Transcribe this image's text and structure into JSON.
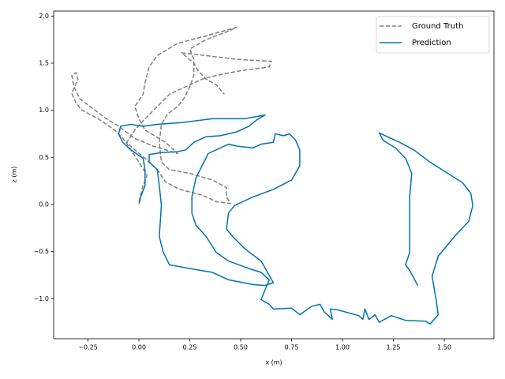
{
  "chart_data": {
    "type": "line",
    "xlabel": "x (m)",
    "ylabel": "z (m)",
    "xlim": [
      -0.419,
      1.744
    ],
    "ylim": [
      -1.425,
      2.053
    ],
    "xticks": [
      {
        "value": -0.25,
        "label": "−0.25"
      },
      {
        "value": 0,
        "label": "0.00"
      },
      {
        "value": 0.25,
        "label": "0.25"
      },
      {
        "value": 0.5,
        "label": "0.50"
      },
      {
        "value": 0.75,
        "label": "0.75"
      },
      {
        "value": 1,
        "label": "1.00"
      },
      {
        "value": 1.25,
        "label": "1.25"
      },
      {
        "value": 1.5,
        "label": "1.50"
      }
    ],
    "yticks": [
      {
        "value": -1,
        "label": "−1.0"
      },
      {
        "value": -0.5,
        "label": "−0.5"
      },
      {
        "value": 0,
        "label": "0.0"
      },
      {
        "value": 0.5,
        "label": "0.5"
      },
      {
        "value": 1,
        "label": "1.0"
      },
      {
        "value": 1.5,
        "label": "1.5"
      },
      {
        "value": 2,
        "label": "2.0"
      }
    ],
    "grid": false,
    "legend": "upper right",
    "series": [
      {
        "name": "Ground Truth",
        "color": "#808080",
        "linestyle": "dashed",
        "x": [
          0.0,
          0.02,
          0.04,
          0.0,
          -0.04,
          -0.07,
          -0.12,
          -0.2,
          -0.28,
          -0.31,
          -0.33,
          -0.3,
          -0.31,
          -0.33,
          -0.32,
          -0.29,
          -0.24,
          -0.16,
          -0.1,
          -0.02,
          0.07,
          0.19,
          0.13,
          0.03,
          0.0,
          -0.02,
          0.02,
          0.03,
          0.05,
          0.09,
          0.19,
          0.33,
          0.48,
          0.44,
          0.33,
          0.25,
          0.27,
          0.27,
          0.25,
          0.22,
          0.19,
          0.14,
          0.11,
          0.1,
          0.11,
          0.15,
          0.25,
          0.36,
          0.43,
          0.43,
          0.45,
          0.38,
          0.31,
          0.2,
          0.13,
          0.09,
          0.03,
          -0.02,
          -0.06,
          -0.02,
          0.03,
          0.09,
          0.15,
          0.21,
          0.31,
          0.38,
          0.5,
          0.64,
          0.65,
          0.48,
          0.33,
          0.21,
          0.27,
          0.29,
          0.33,
          0.38,
          0.42
        ],
        "values": [
          0.03,
          0.2,
          0.31,
          0.45,
          0.58,
          0.68,
          0.79,
          0.91,
          1.0,
          1.08,
          1.18,
          1.33,
          1.4,
          1.37,
          1.25,
          1.12,
          1.04,
          0.91,
          0.83,
          0.7,
          0.62,
          0.54,
          0.66,
          0.79,
          0.91,
          1.04,
          1.17,
          1.29,
          1.46,
          1.58,
          1.71,
          1.79,
          1.88,
          1.84,
          1.75,
          1.65,
          1.54,
          1.37,
          1.25,
          1.12,
          1.04,
          0.96,
          0.85,
          0.66,
          0.45,
          0.37,
          0.33,
          0.26,
          0.18,
          0.08,
          0.01,
          0.03,
          0.1,
          0.16,
          0.24,
          0.37,
          0.49,
          0.58,
          0.66,
          0.79,
          0.91,
          1.04,
          1.17,
          1.23,
          1.33,
          1.37,
          1.42,
          1.46,
          1.52,
          1.54,
          1.58,
          1.61,
          1.5,
          1.42,
          1.33,
          1.27,
          1.17
        ]
      },
      {
        "name": "Prediction",
        "color": "#0072b2",
        "linestyle": "solid",
        "x": [
          0.0,
          0.01,
          0.03,
          0.03,
          0.02,
          -0.04,
          -0.08,
          -0.1,
          -0.09,
          -0.04,
          0.02,
          0.09,
          0.21,
          0.36,
          0.52,
          0.62,
          0.58,
          0.54,
          0.48,
          0.4,
          0.33,
          0.27,
          0.23,
          0.19,
          0.11,
          0.05,
          0.05,
          0.09,
          0.1,
          0.11,
          0.1,
          0.12,
          0.15,
          0.25,
          0.36,
          0.44,
          0.56,
          0.62,
          0.66,
          0.6,
          0.52,
          0.46,
          0.43,
          0.44,
          0.47,
          0.56,
          0.66,
          0.75,
          0.79,
          0.79,
          0.77,
          0.74,
          0.71,
          0.67,
          0.66,
          0.6,
          0.56,
          0.48,
          0.44,
          0.34,
          0.31,
          0.28,
          0.26,
          0.26,
          0.28,
          0.33,
          0.38,
          0.44,
          0.54,
          0.6,
          0.64,
          0.6,
          0.64,
          0.66,
          0.75,
          0.79,
          0.85,
          0.89,
          0.91,
          0.95,
          0.94,
          0.98,
          1.08,
          1.1,
          1.11,
          1.13,
          1.16,
          1.18,
          1.24,
          1.31,
          1.41,
          1.43,
          1.45,
          1.47,
          1.46,
          1.44,
          1.47,
          1.55,
          1.62,
          1.64,
          1.63,
          1.59,
          1.51,
          1.43,
          1.35,
          1.28,
          1.18,
          1.2,
          1.26,
          1.31,
          1.34,
          1.33,
          1.33,
          1.33,
          1.31,
          1.33,
          1.37
        ],
        "values": [
          0.01,
          0.09,
          0.2,
          0.37,
          0.49,
          0.58,
          0.66,
          0.75,
          0.83,
          0.85,
          0.83,
          0.85,
          0.87,
          0.91,
          0.91,
          0.95,
          0.9,
          0.83,
          0.77,
          0.73,
          0.72,
          0.66,
          0.58,
          0.56,
          0.55,
          0.53,
          0.45,
          0.37,
          0.2,
          -0.01,
          -0.34,
          -0.51,
          -0.64,
          -0.68,
          -0.72,
          -0.8,
          -0.85,
          -0.86,
          -0.83,
          -0.6,
          -0.47,
          -0.34,
          -0.26,
          -0.09,
          -0.01,
          0.08,
          0.16,
          0.26,
          0.41,
          0.58,
          0.68,
          0.75,
          0.73,
          0.75,
          0.66,
          0.64,
          0.6,
          0.62,
          0.64,
          0.54,
          0.41,
          0.28,
          0.08,
          -0.09,
          -0.22,
          -0.34,
          -0.51,
          -0.6,
          -0.68,
          -0.72,
          -0.8,
          -1.01,
          -1.06,
          -1.11,
          -1.1,
          -1.17,
          -1.08,
          -1.06,
          -1.14,
          -1.22,
          -1.11,
          -1.12,
          -1.18,
          -1.22,
          -1.11,
          -1.22,
          -1.17,
          -1.25,
          -1.18,
          -1.23,
          -1.24,
          -1.27,
          -1.22,
          -1.17,
          -1.01,
          -0.76,
          -0.55,
          -0.34,
          -0.18,
          -0.01,
          0.12,
          0.23,
          0.34,
          0.45,
          0.58,
          0.66,
          0.76,
          0.68,
          0.6,
          0.49,
          0.33,
          0.08,
          -0.26,
          -0.51,
          -0.64,
          -0.7,
          -0.86
        ]
      }
    ]
  }
}
